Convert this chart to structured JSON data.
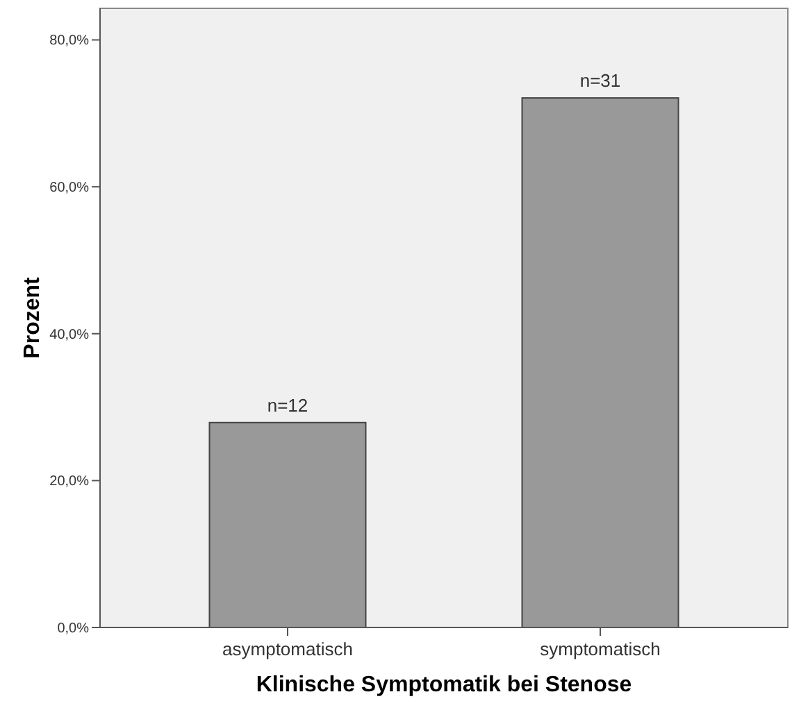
{
  "chart_data": {
    "type": "bar",
    "xlabel": "Klinische Symptomatik bei Stenose",
    "ylabel": "Prozent",
    "categories": [
      "asymptomatisch",
      "symptomatisch"
    ],
    "values": [
      27.9,
      72.1
    ],
    "color": "#999999",
    "annotations": [
      {
        "text": "n=12",
        "x": "asymptomatisch",
        "y": 27.9
      },
      {
        "text": "n=31",
        "x": "symptomatisch",
        "y": 72.1
      }
    ],
    "ylim": [
      0,
      84.3
    ],
    "yticks": [
      {
        "value": 0,
        "label": "0,0%"
      },
      {
        "value": 20,
        "label": "20,0%"
      },
      {
        "value": 40,
        "label": "40,0%"
      },
      {
        "value": 60,
        "label": "60,0%"
      },
      {
        "value": 80,
        "label": "80,0%"
      }
    ],
    "grid": false
  }
}
